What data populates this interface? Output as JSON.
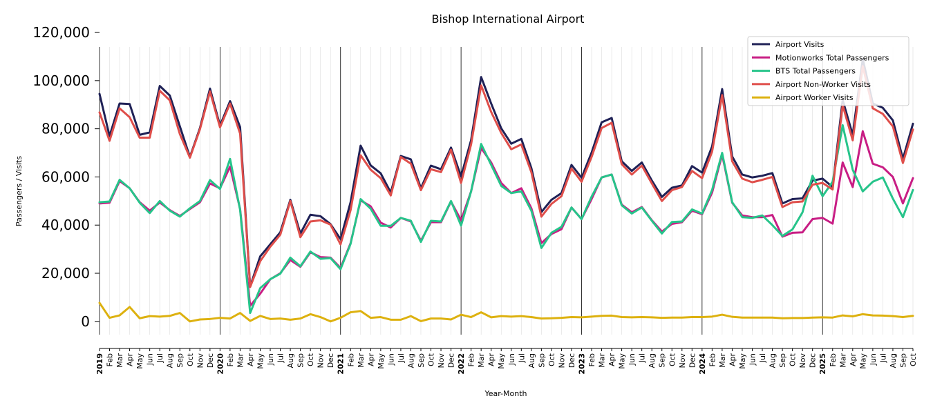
{
  "chart_data": {
    "type": "line",
    "title": "Bishop International Airport",
    "xlabel": "Year-Month",
    "ylabel": "Passengers / Visits",
    "ylim": [
      -5500,
      114000
    ],
    "yticks": [
      0,
      20000,
      40000,
      60000,
      80000,
      100000,
      120000
    ],
    "ytick_labels": [
      "0",
      "20,000",
      "40,000",
      "60,000",
      "80,000",
      "100,000",
      "120,000"
    ],
    "month_names": [
      "Jan",
      "Feb",
      "Mar",
      "Apr",
      "May",
      "Jun",
      "Jul",
      "Aug",
      "Sep",
      "Oct",
      "Nov",
      "Dec"
    ],
    "start": "2019-01",
    "end": "2025-10",
    "legend_position": "top-right",
    "series": [
      {
        "name": "Airport Visits",
        "color": "#1f2156",
        "values": [
          94500,
          77000,
          90500,
          90300,
          77500,
          78500,
          97800,
          93800,
          81000,
          68300,
          80300,
          96700,
          81300,
          91500,
          80700,
          14500,
          27000,
          32000,
          37000,
          50500,
          36500,
          44300,
          43700,
          40400,
          34200,
          49500,
          73000,
          64800,
          61500,
          53500,
          68700,
          67300,
          55300,
          64700,
          63200,
          72200,
          60200,
          75300,
          101500,
          90500,
          80200,
          73800,
          75800,
          63700,
          45400,
          50500,
          53300,
          65000,
          59700,
          70100,
          82700,
          84500,
          66500,
          62500,
          66000,
          58500,
          51700,
          55500,
          56500,
          64500,
          61800,
          72700,
          96500,
          68500,
          61000,
          59800,
          60500,
          61600,
          49000,
          50800,
          51100,
          58500,
          59300,
          55800,
          92000,
          77500,
          109000,
          90500,
          88700,
          83500,
          67500,
          82100
        ]
      },
      {
        "name": "Motionworks Total Passengers",
        "color": "#c81d84",
        "values": [
          49000,
          49300,
          58300,
          55300,
          49500,
          46000,
          49400,
          46200,
          43800,
          46700,
          49500,
          57300,
          55300,
          64300,
          46700,
          6500,
          11500,
          17500,
          20000,
          25500,
          22700,
          28700,
          26700,
          26500,
          22200,
          32500,
          50300,
          47800,
          41000,
          39000,
          43000,
          41500,
          33500,
          41200,
          41200,
          49800,
          42000,
          54000,
          72000,
          66000,
          57500,
          53300,
          55300,
          47000,
          32500,
          36300,
          38300,
          47300,
          42500,
          50800,
          59800,
          61000,
          48500,
          45300,
          47500,
          42000,
          37300,
          40500,
          41200,
          46000,
          44500,
          53500,
          69300,
          49300,
          44000,
          43300,
          43300,
          44200,
          35200,
          36800,
          37000,
          42500,
          43000,
          40600,
          66000,
          55800,
          79000,
          65500,
          64000,
          60000,
          49000,
          59500
        ]
      },
      {
        "name": "BTS Total Passengers",
        "color": "#26c48a",
        "values": [
          49500,
          49800,
          58800,
          55300,
          49300,
          45000,
          50000,
          46000,
          43500,
          47000,
          50000,
          58700,
          55000,
          67500,
          46300,
          3500,
          13800,
          17500,
          19800,
          26500,
          22900,
          29000,
          26000,
          26300,
          21700,
          32200,
          50800,
          46800,
          39700,
          39700,
          43000,
          41800,
          33000,
          41800,
          41500,
          50000,
          39800,
          54000,
          73700,
          65000,
          56300,
          53300,
          54000,
          46000,
          30500,
          36800,
          39300,
          47300,
          42500,
          51800,
          59800,
          61000,
          48200,
          44800,
          47300,
          41800,
          36500,
          41300,
          41500,
          46500,
          44800,
          54600,
          70000,
          49500,
          43300,
          43000,
          44000,
          40000,
          35500,
          38200,
          45300,
          60500,
          52000,
          58000,
          81500,
          63000,
          54000,
          58000,
          59800,
          51000,
          43300,
          54600
        ]
      },
      {
        "name": "Airport Non-Worker Visits",
        "color": "#df4e4a",
        "values": [
          86800,
          75000,
          88500,
          84800,
          76300,
          76300,
          95800,
          91800,
          77800,
          68000,
          79800,
          95500,
          80600,
          90500,
          78000,
          14300,
          25000,
          31000,
          36000,
          50000,
          35000,
          41500,
          42000,
          40200,
          32000,
          46200,
          69000,
          63000,
          59500,
          52300,
          68300,
          65500,
          54500,
          63200,
          62000,
          71300,
          57500,
          73500,
          98000,
          87000,
          78300,
          71500,
          73500,
          62000,
          43500,
          48800,
          52000,
          63500,
          58000,
          68300,
          80300,
          82500,
          65300,
          61000,
          64700,
          57300,
          50000,
          54500,
          55800,
          62500,
          59500,
          70500,
          94000,
          66500,
          59300,
          57800,
          58800,
          60000,
          47500,
          49500,
          49800,
          56800,
          57500,
          54800,
          89800,
          75200,
          106000,
          88500,
          86200,
          81000,
          65800,
          79700
        ]
      },
      {
        "name": "Airport Worker Visits",
        "color": "#ddb10f",
        "values": [
          7700,
          1500,
          2500,
          6000,
          1300,
          2200,
          2000,
          2300,
          3500,
          0,
          800,
          1000,
          1500,
          1200,
          3500,
          200,
          2300,
          1000,
          1200,
          700,
          1200,
          3000,
          1800,
          0,
          1500,
          3800,
          4300,
          1500,
          1800,
          700,
          700,
          2200,
          100,
          1200,
          1200,
          800,
          2800,
          1800,
          3800,
          1700,
          2200,
          2000,
          2200,
          1800,
          1200,
          1300,
          1500,
          1800,
          1700,
          2000,
          2300,
          2400,
          1800,
          1700,
          1800,
          1700,
          1500,
          1600,
          1600,
          1800,
          1800,
          2000,
          2800,
          1900,
          1600,
          1600,
          1600,
          1600,
          1300,
          1400,
          1400,
          1600,
          1700,
          1600,
          2500,
          2100,
          3000,
          2500,
          2400,
          2200,
          1800,
          2300
        ]
      }
    ]
  }
}
